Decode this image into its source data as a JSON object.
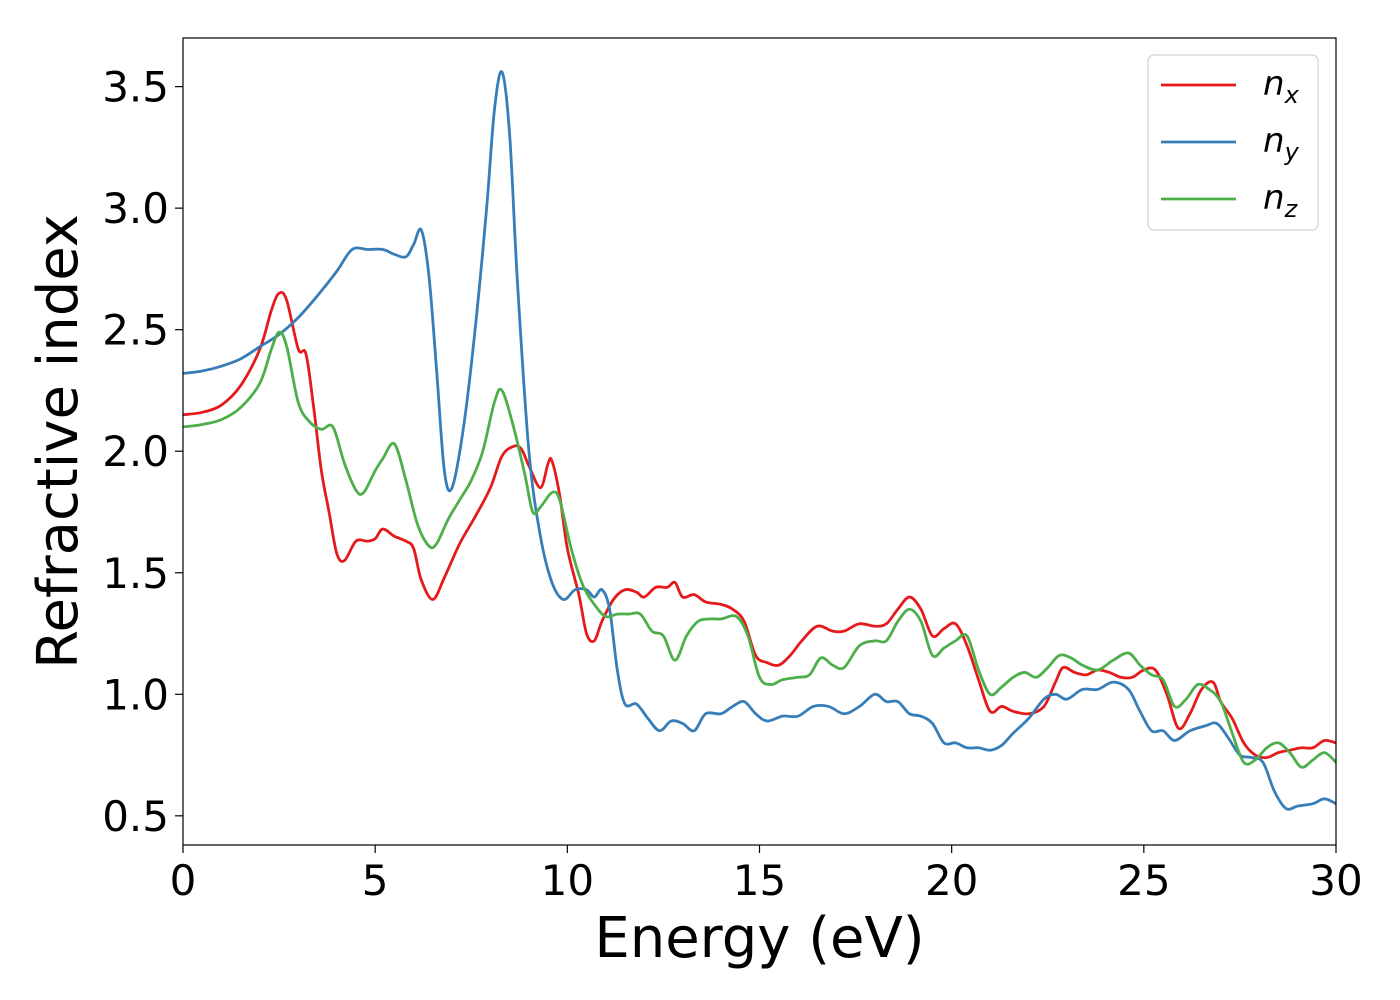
{
  "chart_data": {
    "type": "line",
    "xlabel": "Energy (eV)",
    "ylabel": "Refractive index",
    "xlim": [
      0,
      30
    ],
    "ylim": [
      0.38,
      3.7
    ],
    "xticks": [
      0,
      5,
      10,
      15,
      20,
      25,
      30
    ],
    "xtick_labels": [
      "0",
      "5",
      "10",
      "15",
      "20",
      "25",
      "30"
    ],
    "yticks": [
      0.5,
      1.0,
      1.5,
      2.0,
      2.5,
      3.0,
      3.5
    ],
    "ytick_labels": [
      "0.5",
      "1.0",
      "1.5",
      "2.0",
      "2.5",
      "3.0",
      "3.5"
    ],
    "grid": false,
    "legend_position": "top-right",
    "series": [
      {
        "name": "n_x",
        "label_base": "n",
        "label_sub": "x",
        "color": "#e41a1c",
        "points": [
          [
            0,
            2.15
          ],
          [
            0.5,
            2.16
          ],
          [
            1.0,
            2.19
          ],
          [
            1.5,
            2.27
          ],
          [
            2.0,
            2.42
          ],
          [
            2.3,
            2.58
          ],
          [
            2.5,
            2.65
          ],
          [
            2.7,
            2.62
          ],
          [
            3.0,
            2.42
          ],
          [
            3.2,
            2.4
          ],
          [
            3.4,
            2.18
          ],
          [
            3.6,
            1.92
          ],
          [
            3.8,
            1.75
          ],
          [
            4.0,
            1.58
          ],
          [
            4.2,
            1.55
          ],
          [
            4.5,
            1.63
          ],
          [
            4.8,
            1.63
          ],
          [
            5.0,
            1.64
          ],
          [
            5.2,
            1.68
          ],
          [
            5.5,
            1.65
          ],
          [
            5.8,
            1.63
          ],
          [
            6.0,
            1.6
          ],
          [
            6.2,
            1.47
          ],
          [
            6.5,
            1.39
          ],
          [
            6.8,
            1.48
          ],
          [
            7.2,
            1.62
          ],
          [
            7.6,
            1.73
          ],
          [
            8.0,
            1.85
          ],
          [
            8.3,
            1.98
          ],
          [
            8.6,
            2.02
          ],
          [
            8.8,
            2.01
          ],
          [
            9.0,
            1.94
          ],
          [
            9.3,
            1.85
          ],
          [
            9.5,
            1.95
          ],
          [
            9.6,
            1.96
          ],
          [
            9.8,
            1.82
          ],
          [
            10.0,
            1.6
          ],
          [
            10.3,
            1.41
          ],
          [
            10.5,
            1.25
          ],
          [
            10.7,
            1.22
          ],
          [
            10.9,
            1.3
          ],
          [
            11.2,
            1.39
          ],
          [
            11.5,
            1.43
          ],
          [
            11.8,
            1.42
          ],
          [
            12.0,
            1.4
          ],
          [
            12.3,
            1.44
          ],
          [
            12.6,
            1.44
          ],
          [
            12.8,
            1.46
          ],
          [
            13.0,
            1.4
          ],
          [
            13.3,
            1.41
          ],
          [
            13.6,
            1.38
          ],
          [
            14.0,
            1.37
          ],
          [
            14.3,
            1.35
          ],
          [
            14.6,
            1.3
          ],
          [
            14.9,
            1.16
          ],
          [
            15.2,
            1.13
          ],
          [
            15.5,
            1.12
          ],
          [
            15.8,
            1.16
          ],
          [
            16.1,
            1.22
          ],
          [
            16.5,
            1.28
          ],
          [
            16.9,
            1.26
          ],
          [
            17.2,
            1.26
          ],
          [
            17.6,
            1.29
          ],
          [
            18.0,
            1.28
          ],
          [
            18.3,
            1.29
          ],
          [
            18.6,
            1.35
          ],
          [
            18.9,
            1.4
          ],
          [
            19.2,
            1.35
          ],
          [
            19.5,
            1.24
          ],
          [
            19.8,
            1.27
          ],
          [
            20.1,
            1.29
          ],
          [
            20.4,
            1.2
          ],
          [
            20.7,
            1.06
          ],
          [
            21.0,
            0.93
          ],
          [
            21.3,
            0.95
          ],
          [
            21.6,
            0.93
          ],
          [
            22.0,
            0.92
          ],
          [
            22.4,
            0.95
          ],
          [
            22.7,
            1.05
          ],
          [
            22.9,
            1.11
          ],
          [
            23.2,
            1.09
          ],
          [
            23.5,
            1.08
          ],
          [
            23.8,
            1.1
          ],
          [
            24.1,
            1.09
          ],
          [
            24.4,
            1.07
          ],
          [
            24.7,
            1.07
          ],
          [
            25.0,
            1.1
          ],
          [
            25.3,
            1.1
          ],
          [
            25.6,
            1.0
          ],
          [
            25.9,
            0.86
          ],
          [
            26.2,
            0.92
          ],
          [
            26.5,
            1.02
          ],
          [
            26.8,
            1.05
          ],
          [
            27.0,
            0.97
          ],
          [
            27.3,
            0.9
          ],
          [
            27.6,
            0.8
          ],
          [
            27.9,
            0.75
          ],
          [
            28.2,
            0.74
          ],
          [
            28.5,
            0.76
          ],
          [
            28.8,
            0.77
          ],
          [
            29.1,
            0.78
          ],
          [
            29.4,
            0.78
          ],
          [
            29.7,
            0.81
          ],
          [
            30.0,
            0.8
          ]
        ]
      },
      {
        "name": "n_y",
        "label_base": "n",
        "label_sub": "y",
        "color": "#377eb8",
        "points": [
          [
            0,
            2.32
          ],
          [
            0.5,
            2.33
          ],
          [
            1.0,
            2.35
          ],
          [
            1.5,
            2.38
          ],
          [
            2.0,
            2.43
          ],
          [
            2.5,
            2.48
          ],
          [
            3.0,
            2.55
          ],
          [
            3.5,
            2.64
          ],
          [
            4.0,
            2.74
          ],
          [
            4.4,
            2.83
          ],
          [
            4.8,
            2.83
          ],
          [
            5.2,
            2.83
          ],
          [
            5.5,
            2.81
          ],
          [
            5.8,
            2.8
          ],
          [
            6.0,
            2.85
          ],
          [
            6.2,
            2.91
          ],
          [
            6.4,
            2.72
          ],
          [
            6.6,
            2.33
          ],
          [
            6.8,
            1.92
          ],
          [
            7.0,
            1.85
          ],
          [
            7.3,
            2.1
          ],
          [
            7.6,
            2.5
          ],
          [
            7.9,
            3.0
          ],
          [
            8.1,
            3.4
          ],
          [
            8.3,
            3.56
          ],
          [
            8.5,
            3.3
          ],
          [
            8.7,
            2.7
          ],
          [
            9.0,
            2.0
          ],
          [
            9.3,
            1.65
          ],
          [
            9.6,
            1.46
          ],
          [
            9.9,
            1.39
          ],
          [
            10.2,
            1.43
          ],
          [
            10.5,
            1.43
          ],
          [
            10.7,
            1.4
          ],
          [
            10.9,
            1.43
          ],
          [
            11.1,
            1.35
          ],
          [
            11.3,
            1.1
          ],
          [
            11.5,
            0.96
          ],
          [
            11.8,
            0.96
          ],
          [
            12.1,
            0.9
          ],
          [
            12.4,
            0.85
          ],
          [
            12.7,
            0.89
          ],
          [
            13.0,
            0.88
          ],
          [
            13.3,
            0.85
          ],
          [
            13.6,
            0.92
          ],
          [
            14.0,
            0.92
          ],
          [
            14.3,
            0.95
          ],
          [
            14.6,
            0.97
          ],
          [
            14.9,
            0.92
          ],
          [
            15.2,
            0.89
          ],
          [
            15.6,
            0.91
          ],
          [
            16.0,
            0.91
          ],
          [
            16.4,
            0.95
          ],
          [
            16.8,
            0.95
          ],
          [
            17.2,
            0.92
          ],
          [
            17.6,
            0.95
          ],
          [
            18.0,
            1.0
          ],
          [
            18.3,
            0.97
          ],
          [
            18.6,
            0.97
          ],
          [
            18.9,
            0.92
          ],
          [
            19.2,
            0.91
          ],
          [
            19.5,
            0.88
          ],
          [
            19.8,
            0.8
          ],
          [
            20.1,
            0.8
          ],
          [
            20.4,
            0.78
          ],
          [
            20.7,
            0.78
          ],
          [
            21.0,
            0.77
          ],
          [
            21.3,
            0.79
          ],
          [
            21.6,
            0.84
          ],
          [
            22.0,
            0.9
          ],
          [
            22.4,
            0.98
          ],
          [
            22.7,
            1.0
          ],
          [
            23.0,
            0.98
          ],
          [
            23.4,
            1.02
          ],
          [
            23.8,
            1.02
          ],
          [
            24.2,
            1.05
          ],
          [
            24.6,
            1.02
          ],
          [
            24.9,
            0.93
          ],
          [
            25.2,
            0.85
          ],
          [
            25.5,
            0.85
          ],
          [
            25.8,
            0.81
          ],
          [
            26.2,
            0.85
          ],
          [
            26.6,
            0.87
          ],
          [
            26.9,
            0.88
          ],
          [
            27.2,
            0.82
          ],
          [
            27.5,
            0.75
          ],
          [
            27.8,
            0.74
          ],
          [
            28.1,
            0.72
          ],
          [
            28.4,
            0.6
          ],
          [
            28.7,
            0.53
          ],
          [
            29.0,
            0.54
          ],
          [
            29.4,
            0.55
          ],
          [
            29.7,
            0.57
          ],
          [
            30.0,
            0.55
          ]
        ]
      },
      {
        "name": "n_z",
        "label_base": "n",
        "label_sub": "z",
        "color": "#4daf4a",
        "points": [
          [
            0,
            2.1
          ],
          [
            0.5,
            2.11
          ],
          [
            1.0,
            2.13
          ],
          [
            1.5,
            2.18
          ],
          [
            2.0,
            2.28
          ],
          [
            2.3,
            2.42
          ],
          [
            2.5,
            2.49
          ],
          [
            2.7,
            2.43
          ],
          [
            3.0,
            2.2
          ],
          [
            3.3,
            2.12
          ],
          [
            3.6,
            2.09
          ],
          [
            3.9,
            2.1
          ],
          [
            4.2,
            1.95
          ],
          [
            4.5,
            1.84
          ],
          [
            4.7,
            1.83
          ],
          [
            5.0,
            1.92
          ],
          [
            5.2,
            1.97
          ],
          [
            5.5,
            2.03
          ],
          [
            5.8,
            1.88
          ],
          [
            6.1,
            1.7
          ],
          [
            6.4,
            1.61
          ],
          [
            6.6,
            1.62
          ],
          [
            6.9,
            1.72
          ],
          [
            7.2,
            1.8
          ],
          [
            7.5,
            1.88
          ],
          [
            7.8,
            2.0
          ],
          [
            8.1,
            2.2
          ],
          [
            8.3,
            2.25
          ],
          [
            8.6,
            2.1
          ],
          [
            8.9,
            1.9
          ],
          [
            9.1,
            1.75
          ],
          [
            9.3,
            1.77
          ],
          [
            9.6,
            1.83
          ],
          [
            9.8,
            1.8
          ],
          [
            10.1,
            1.6
          ],
          [
            10.4,
            1.45
          ],
          [
            10.7,
            1.37
          ],
          [
            11.0,
            1.32
          ],
          [
            11.3,
            1.33
          ],
          [
            11.6,
            1.33
          ],
          [
            11.9,
            1.33
          ],
          [
            12.2,
            1.26
          ],
          [
            12.5,
            1.24
          ],
          [
            12.8,
            1.14
          ],
          [
            13.1,
            1.24
          ],
          [
            13.4,
            1.3
          ],
          [
            13.7,
            1.31
          ],
          [
            14.0,
            1.31
          ],
          [
            14.4,
            1.32
          ],
          [
            14.7,
            1.24
          ],
          [
            15.0,
            1.07
          ],
          [
            15.3,
            1.04
          ],
          [
            15.6,
            1.06
          ],
          [
            16.0,
            1.07
          ],
          [
            16.3,
            1.08
          ],
          [
            16.6,
            1.15
          ],
          [
            16.9,
            1.12
          ],
          [
            17.2,
            1.11
          ],
          [
            17.6,
            1.2
          ],
          [
            18.0,
            1.22
          ],
          [
            18.3,
            1.22
          ],
          [
            18.6,
            1.3
          ],
          [
            18.9,
            1.35
          ],
          [
            19.2,
            1.3
          ],
          [
            19.5,
            1.16
          ],
          [
            19.8,
            1.19
          ],
          [
            20.1,
            1.22
          ],
          [
            20.4,
            1.24
          ],
          [
            20.7,
            1.1
          ],
          [
            21.0,
            1.0
          ],
          [
            21.3,
            1.03
          ],
          [
            21.6,
            1.07
          ],
          [
            21.9,
            1.09
          ],
          [
            22.2,
            1.07
          ],
          [
            22.5,
            1.11
          ],
          [
            22.8,
            1.16
          ],
          [
            23.1,
            1.15
          ],
          [
            23.4,
            1.12
          ],
          [
            23.8,
            1.1
          ],
          [
            24.2,
            1.14
          ],
          [
            24.6,
            1.17
          ],
          [
            24.9,
            1.12
          ],
          [
            25.2,
            1.08
          ],
          [
            25.5,
            1.06
          ],
          [
            25.8,
            0.95
          ],
          [
            26.1,
            0.98
          ],
          [
            26.4,
            1.04
          ],
          [
            26.7,
            1.02
          ],
          [
            27.0,
            0.97
          ],
          [
            27.3,
            0.84
          ],
          [
            27.6,
            0.72
          ],
          [
            27.9,
            0.73
          ],
          [
            28.2,
            0.78
          ],
          [
            28.5,
            0.8
          ],
          [
            28.8,
            0.76
          ],
          [
            29.1,
            0.7
          ],
          [
            29.4,
            0.73
          ],
          [
            29.7,
            0.76
          ],
          [
            30.0,
            0.72
          ]
        ]
      }
    ]
  }
}
